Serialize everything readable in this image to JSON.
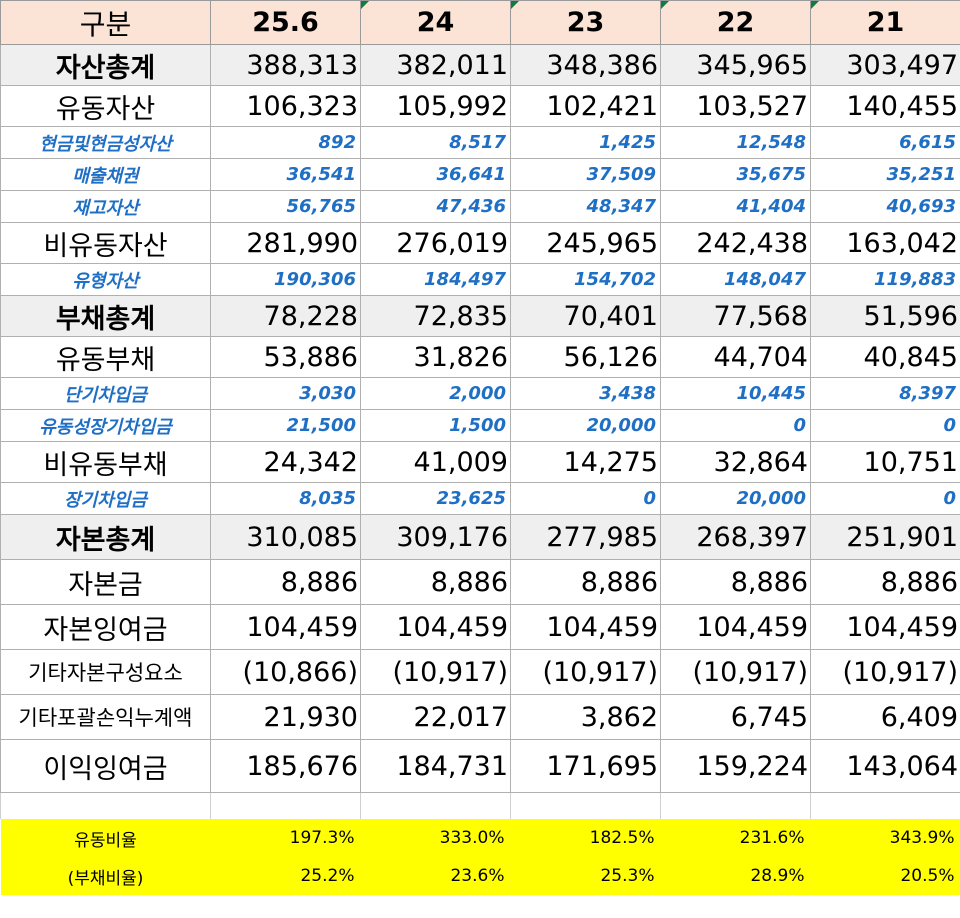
{
  "header": {
    "label": "구분",
    "years": [
      "25.6",
      "24",
      "23",
      "22",
      "21"
    ]
  },
  "rows": {
    "total_assets": {
      "label": "자산총계",
      "values": [
        "388,313",
        "382,011",
        "348,386",
        "345,965",
        "303,497"
      ]
    },
    "current_assets": {
      "label": "유동자산",
      "values": [
        "106,323",
        "105,992",
        "102,421",
        "103,527",
        "140,455"
      ]
    },
    "cash": {
      "label": "현금및현금성자산",
      "values": [
        "892",
        "8,517",
        "1,425",
        "12,548",
        "6,615"
      ]
    },
    "receivables": {
      "label": "매출채권",
      "values": [
        "36,541",
        "36,641",
        "37,509",
        "35,675",
        "35,251"
      ]
    },
    "inventory": {
      "label": "재고자산",
      "values": [
        "56,765",
        "47,436",
        "48,347",
        "41,404",
        "40,693"
      ]
    },
    "noncurrent_assets": {
      "label": "비유동자산",
      "values": [
        "281,990",
        "276,019",
        "245,965",
        "242,438",
        "163,042"
      ]
    },
    "tangible_assets": {
      "label": "유형자산",
      "values": [
        "190,306",
        "184,497",
        "154,702",
        "148,047",
        "119,883"
      ]
    },
    "total_liabilities": {
      "label": "부채총계",
      "values": [
        "78,228",
        "72,835",
        "70,401",
        "77,568",
        "51,596"
      ]
    },
    "current_liabilities": {
      "label": "유동부채",
      "values": [
        "53,886",
        "31,826",
        "56,126",
        "44,704",
        "40,845"
      ]
    },
    "short_term_borrowings": {
      "label": "단기차입금",
      "values": [
        "3,030",
        "2,000",
        "3,438",
        "10,445",
        "8,397"
      ]
    },
    "current_long_term_borrowings": {
      "label": "유동성장기차입금",
      "values": [
        "21,500",
        "1,500",
        "20,000",
        "0",
        "0"
      ]
    },
    "noncurrent_liabilities": {
      "label": "비유동부채",
      "values": [
        "24,342",
        "41,009",
        "14,275",
        "32,864",
        "10,751"
      ]
    },
    "long_term_borrowings": {
      "label": "장기차입금",
      "values": [
        "8,035",
        "23,625",
        "0",
        "20,000",
        "0"
      ]
    },
    "total_equity": {
      "label": "자본총계",
      "values": [
        "310,085",
        "309,176",
        "277,985",
        "268,397",
        "251,901"
      ]
    },
    "capital_stock": {
      "label": "자본금",
      "values": [
        "8,886",
        "8,886",
        "8,886",
        "8,886",
        "8,886"
      ]
    },
    "capital_surplus": {
      "label": "자본잉여금",
      "values": [
        "104,459",
        "104,459",
        "104,459",
        "104,459",
        "104,459"
      ]
    },
    "other_capital": {
      "label": "기타자본구성요소",
      "values": [
        "(10,866)",
        "(10,917)",
        "(10,917)",
        "(10,917)",
        "(10,917)"
      ]
    },
    "other_comprehensive": {
      "label": "기타포괄손익누계액",
      "values": [
        "21,930",
        "22,017",
        "3,862",
        "6,745",
        "6,409"
      ]
    },
    "retained_earnings": {
      "label": "이익잉여금",
      "values": [
        "185,676",
        "184,731",
        "171,695",
        "159,224",
        "143,064"
      ]
    }
  },
  "ratios": {
    "current_ratio": {
      "label": "유동비율",
      "values": [
        "197.3%",
        "333.0%",
        "182.5%",
        "231.6%",
        "343.9%"
      ]
    },
    "debt_ratio": {
      "label": "(부채비율)",
      "values": [
        "25.2%",
        "23.6%",
        "25.3%",
        "28.9%",
        "20.5%"
      ]
    }
  },
  "colors": {
    "header_bg": "#fbe3d6",
    "total_row_bg": "#efefef",
    "sub_item_text": "#1f6fc5",
    "ratio_bg": "#ffff00"
  }
}
